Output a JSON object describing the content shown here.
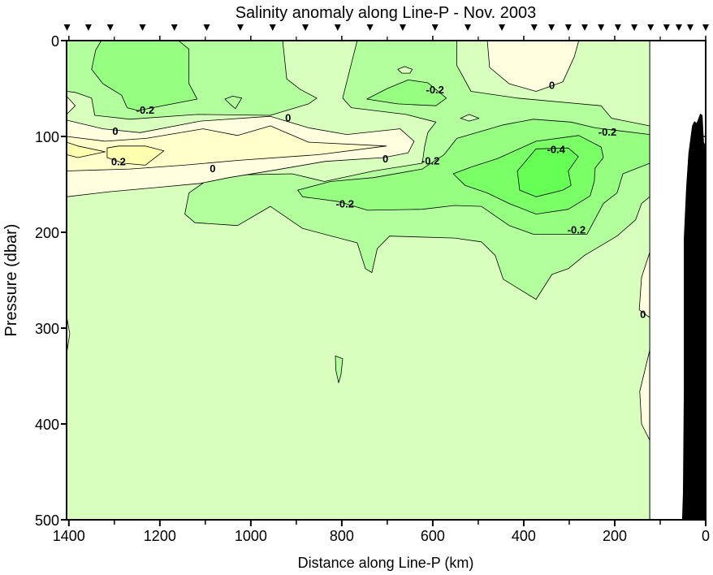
{
  "chart_data": {
    "type": "contour",
    "title": "Salinity anomaly along Line-P - Nov. 2003",
    "xlabel": "Distance along Line-P (km)",
    "ylabel": "Pressure (dbar)",
    "xlim": [
      1405,
      0
    ],
    "ylim": [
      0,
      500
    ],
    "data_right_limit_km": 123,
    "x_ticks": [
      1400,
      1200,
      1000,
      800,
      600,
      400,
      200,
      0
    ],
    "x_tick_labels": [
      "1400",
      "1200",
      "1000",
      "800",
      "600",
      "400",
      "200",
      "0"
    ],
    "x_minor_step": 100,
    "y_ticks": [
      0,
      100,
      200,
      300,
      400,
      500
    ],
    "y_tick_labels": [
      "0",
      "100",
      "200",
      "300",
      "400",
      "500"
    ],
    "station_km": [
      1404,
      1357,
      1309,
      1238,
      1168,
      1097,
      1023,
      952,
      880,
      809,
      738,
      666,
      595,
      523,
      448,
      377,
      339,
      302,
      266,
      230,
      193,
      157,
      121,
      86,
      59,
      34,
      0
    ],
    "colors": {
      "bg": "#d9ffbf",
      "m01": "#b3ff9e",
      "m02": "#96ff82",
      "m03": "#7aff66",
      "m04": "#66ff55",
      "p00": "#ffffe0",
      "p01": "#ffffcc",
      "p02": "#ffffb0",
      "bathy": "#000000"
    },
    "regions": [
      {
        "name": "topleft-minus01",
        "level": "-0.2..-0.1",
        "color": "m01",
        "points": [
          [
            1405,
            0
          ],
          [
            930,
            0
          ],
          [
            921,
            40
          ],
          [
            891,
            51
          ],
          [
            855,
            60
          ],
          [
            873,
            66
          ],
          [
            957,
            78
          ],
          [
            1118,
            77
          ],
          [
            1266,
            82
          ],
          [
            1343,
            78
          ],
          [
            1350,
            60
          ],
          [
            1386,
            54
          ],
          [
            1405,
            53
          ]
        ]
      },
      {
        "name": "topleft-minus02",
        "level": "-0.3..-0.2",
        "color": "m02",
        "points": [
          [
            1329,
            0
          ],
          [
            1159,
            0
          ],
          [
            1136,
            9
          ],
          [
            1136,
            45
          ],
          [
            1118,
            61
          ],
          [
            1248,
            73
          ],
          [
            1272,
            70
          ],
          [
            1284,
            57
          ],
          [
            1325,
            45
          ],
          [
            1350,
            30
          ],
          [
            1341,
            10
          ]
        ]
      },
      {
        "name": "small-blob-minus01",
        "level": "-0.2..-0.1",
        "color": "m01",
        "points": [
          [
            1057,
            61
          ],
          [
            1040,
            58
          ],
          [
            1020,
            60
          ],
          [
            1034,
            71
          ],
          [
            1046,
            66
          ]
        ]
      },
      {
        "name": "central-minus01",
        "level": "-0.2..-0.1",
        "color": "m01",
        "points": [
          [
            766,
            0
          ],
          [
            780,
            26
          ],
          [
            798,
            60
          ],
          [
            779,
            70
          ],
          [
            659,
            77
          ],
          [
            593,
            85
          ],
          [
            611,
            96
          ],
          [
            618,
            111
          ],
          [
            623,
            128
          ],
          [
            730,
            136
          ],
          [
            838,
            147
          ],
          [
            909,
            139
          ],
          [
            1016,
            140
          ],
          [
            1100,
            147
          ],
          [
            1136,
            159
          ],
          [
            1145,
            181
          ],
          [
            1123,
            190
          ],
          [
            1029,
            193
          ],
          [
            957,
            173
          ],
          [
            886,
            196
          ],
          [
            766,
            211
          ],
          [
            748,
            238
          ],
          [
            734,
            242
          ],
          [
            722,
            217
          ],
          [
            695,
            204
          ],
          [
            552,
            206
          ],
          [
            493,
            210
          ],
          [
            463,
            224
          ],
          [
            445,
            249
          ],
          [
            373,
            270
          ],
          [
            338,
            244
          ],
          [
            302,
            238
          ],
          [
            266,
            224
          ],
          [
            195,
            204
          ],
          [
            154,
            187
          ],
          [
            141,
            170
          ],
          [
            123,
            163
          ],
          [
            123,
            89
          ],
          [
            207,
            81
          ],
          [
            230,
            68
          ],
          [
            414,
            60
          ],
          [
            516,
            53
          ],
          [
            547,
            26
          ],
          [
            547,
            0
          ]
        ]
      },
      {
        "name": "light-hole-top",
        "level": "-0.1..0",
        "color": "bg",
        "points": [
          [
            677,
            30
          ],
          [
            662,
            27
          ],
          [
            645,
            30
          ],
          [
            650,
            34
          ],
          [
            668,
            34
          ]
        ]
      },
      {
        "name": "upper-minus02",
        "level": "-0.3..-0.2",
        "color": "m02",
        "points": [
          [
            745,
            61
          ],
          [
            700,
            50
          ],
          [
            654,
            41
          ],
          [
            611,
            44
          ],
          [
            570,
            60
          ],
          [
            593,
            68
          ],
          [
            677,
            66
          ]
        ]
      },
      {
        "name": "light-hole-mid",
        "level": "-0.1..0",
        "color": "bg",
        "points": [
          [
            539,
            81
          ],
          [
            520,
            77
          ],
          [
            498,
            81
          ],
          [
            520,
            84
          ]
        ]
      },
      {
        "name": "core-minus02",
        "level": "-0.3..-0.2",
        "color": "m02",
        "points": [
          [
            897,
            156
          ],
          [
            825,
            147
          ],
          [
            730,
            143
          ],
          [
            623,
            134
          ],
          [
            575,
            119
          ],
          [
            547,
            102
          ],
          [
            445,
            88
          ],
          [
            379,
            82
          ],
          [
            296,
            85
          ],
          [
            243,
            91
          ],
          [
            123,
            98
          ],
          [
            123,
            128
          ],
          [
            182,
            139
          ],
          [
            195,
            159
          ],
          [
            225,
            170
          ],
          [
            261,
            202
          ],
          [
            314,
            202
          ],
          [
            379,
            202
          ],
          [
            432,
            193
          ],
          [
            493,
            173
          ],
          [
            552,
            172
          ],
          [
            623,
            176
          ],
          [
            743,
            177
          ],
          [
            807,
            168
          ],
          [
            886,
            163
          ]
        ]
      },
      {
        "name": "core-minus03",
        "level": "-0.4..-0.3",
        "color": "m03",
        "points": [
          [
            555,
            139
          ],
          [
            516,
            132
          ],
          [
            457,
            123
          ],
          [
            373,
            105
          ],
          [
            279,
            99
          ],
          [
            230,
            111
          ],
          [
            225,
            122
          ],
          [
            243,
            133
          ],
          [
            245,
            147
          ],
          [
            254,
            162
          ],
          [
            302,
            176
          ],
          [
            373,
            181
          ],
          [
            432,
            170
          ],
          [
            480,
            159
          ],
          [
            529,
            151
          ]
        ]
      },
      {
        "name": "core-minus04",
        "level": "< -0.4",
        "color": "m04",
        "points": [
          [
            414,
            136
          ],
          [
            373,
            113
          ],
          [
            302,
            112
          ],
          [
            280,
            121
          ],
          [
            302,
            136
          ],
          [
            296,
            151
          ],
          [
            314,
            156
          ],
          [
            373,
            163
          ],
          [
            409,
            156
          ]
        ]
      },
      {
        "name": "topright-plus00",
        "level": "0..0.1",
        "color": "p00",
        "points": [
          [
            480,
            0
          ],
          [
            475,
            28
          ],
          [
            432,
            45
          ],
          [
            373,
            53
          ],
          [
            343,
            48
          ],
          [
            314,
            43
          ],
          [
            289,
            17
          ],
          [
            279,
            0
          ]
        ]
      },
      {
        "name": "band-plus00",
        "level": "0..0.1",
        "color": "p00",
        "points": [
          [
            1405,
            83
          ],
          [
            1325,
            92
          ],
          [
            1243,
            96
          ],
          [
            1111,
            84
          ],
          [
            957,
            79
          ],
          [
            873,
            91
          ],
          [
            789,
            98
          ],
          [
            672,
            92
          ],
          [
            641,
            105
          ],
          [
            654,
            117
          ],
          [
            707,
            122
          ],
          [
            836,
            126
          ],
          [
            946,
            135
          ],
          [
            1048,
            143
          ],
          [
            1111,
            149
          ],
          [
            1200,
            153
          ],
          [
            1316,
            158
          ],
          [
            1405,
            163
          ]
        ]
      },
      {
        "name": "band-plus01",
        "level": "0.1..0.2",
        "color": "p01",
        "points": [
          [
            1405,
            100
          ],
          [
            1320,
            105
          ],
          [
            1230,
            102
          ],
          [
            1105,
            92
          ],
          [
            1029,
            99
          ],
          [
            957,
            89
          ],
          [
            873,
            106
          ],
          [
            702,
            110
          ],
          [
            850,
            119
          ],
          [
            1029,
            125
          ],
          [
            1147,
            130
          ],
          [
            1266,
            134
          ],
          [
            1405,
            136
          ]
        ]
      },
      {
        "name": "blob-plus02-a",
        "level": "> 0.2",
        "color": "p02",
        "points": [
          [
            1405,
            106
          ],
          [
            1380,
            110
          ],
          [
            1320,
            116
          ],
          [
            1380,
            122
          ],
          [
            1405,
            119
          ]
        ]
      },
      {
        "name": "blob-plus02-b",
        "level": "> 0.2",
        "color": "p02",
        "points": [
          [
            1316,
            112
          ],
          [
            1291,
            110
          ],
          [
            1232,
            110
          ],
          [
            1191,
            115
          ],
          [
            1232,
            130
          ],
          [
            1280,
            128
          ],
          [
            1316,
            122
          ]
        ]
      },
      {
        "name": "bump-plus00",
        "level": "0..0.1",
        "color": "p00",
        "points": [
          [
            1405,
            58
          ],
          [
            1386,
            68
          ],
          [
            1405,
            77
          ]
        ]
      },
      {
        "name": "right-plus00-a",
        "level": "0..0.1",
        "color": "p00",
        "points": [
          [
            123,
            221
          ],
          [
            141,
            247
          ],
          [
            146,
            281
          ],
          [
            123,
            289
          ]
        ]
      },
      {
        "name": "right-plus00-b",
        "level": "0..0.1",
        "color": "p00",
        "points": [
          [
            123,
            323
          ],
          [
            145,
            366
          ],
          [
            141,
            400
          ],
          [
            123,
            417
          ]
        ]
      },
      {
        "name": "left-plus00",
        "level": "0..0.1",
        "color": "p00",
        "points": [
          [
            1405,
            287
          ],
          [
            1398,
            306
          ],
          [
            1405,
            327
          ]
        ]
      },
      {
        "name": "small-blob-deep",
        "level": "-0.2..-0.1",
        "color": "m01",
        "points": [
          [
            814,
            329
          ],
          [
            798,
            332
          ],
          [
            802,
            349
          ],
          [
            807,
            357
          ],
          [
            813,
            344
          ]
        ]
      }
    ],
    "bathymetry": [
      [
        52,
        500
      ],
      [
        50,
        472
      ],
      [
        48,
        363
      ],
      [
        48,
        206
      ],
      [
        43,
        154
      ],
      [
        38,
        118
      ],
      [
        30,
        89
      ],
      [
        25,
        84
      ],
      [
        20,
        86
      ],
      [
        12,
        76
      ],
      [
        7,
        78
      ],
      [
        4,
        106
      ],
      [
        0,
        110
      ],
      [
        0,
        500
      ]
    ],
    "contour_labels": [
      {
        "text": "-0.2",
        "km": 1232,
        "dbar": 72
      },
      {
        "text": "0",
        "km": 1298,
        "dbar": 94
      },
      {
        "text": "0.2",
        "km": 1291,
        "dbar": 126
      },
      {
        "text": "0",
        "km": 1084,
        "dbar": 133
      },
      {
        "text": "0",
        "km": 918,
        "dbar": 80
      },
      {
        "text": "0",
        "km": 704,
        "dbar": 123
      },
      {
        "text": "-0.2",
        "km": 595,
        "dbar": 51
      },
      {
        "text": "-0.2",
        "km": 605,
        "dbar": 125
      },
      {
        "text": "-0.2",
        "km": 793,
        "dbar": 170
      },
      {
        "text": "0",
        "km": 338,
        "dbar": 46
      },
      {
        "text": "-0.2",
        "km": 216,
        "dbar": 95
      },
      {
        "text": "-0.4",
        "km": 329,
        "dbar": 113
      },
      {
        "text": "-0.2",
        "km": 284,
        "dbar": 197
      },
      {
        "text": "0",
        "km": 138,
        "dbar": 285
      }
    ]
  }
}
